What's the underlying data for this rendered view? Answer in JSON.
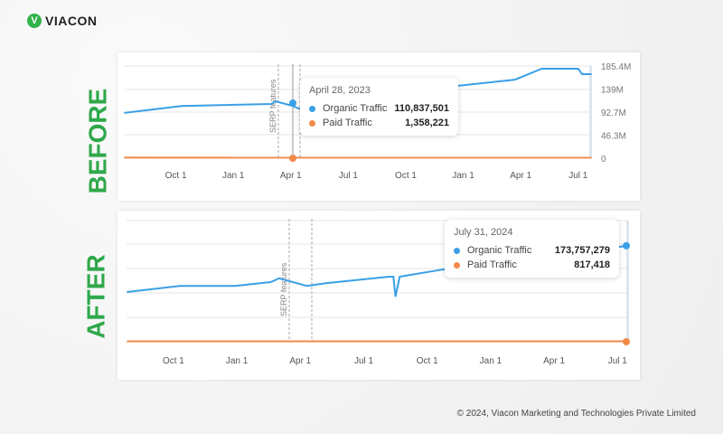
{
  "brand": {
    "name": "VIACON",
    "reg": "®"
  },
  "labels": {
    "before": "BEFORE",
    "after": "AFTER"
  },
  "footer": "© 2024, Viacon Marketing and Technologies Private Limited",
  "colors": {
    "organic": "#3a9fe6",
    "paid": "#f28a4a",
    "accent": "#2fa84a"
  },
  "chart_data": [
    {
      "type": "line",
      "title": "BEFORE",
      "ylim": [
        0,
        185.4
      ],
      "y_ticks": [
        "0",
        "46.3M",
        "92.7M",
        "139M",
        "185.4M"
      ],
      "x_ticks": [
        "Oct 1",
        "Jan 1",
        "Apr 1",
        "Jul 1",
        "Oct 1",
        "Jan 1",
        "Apr 1",
        "Jul 1"
      ],
      "annotation": "SERP features",
      "series": [
        {
          "name": "Organic Traffic",
          "unit": "M",
          "points": [
            [
              0.3,
              91
            ],
            [
              3.3,
              105
            ],
            [
              8,
              109
            ],
            [
              8.2,
              114.5
            ],
            [
              9.1,
              105
            ],
            [
              9.4,
              100
            ],
            [
              17.6,
              145
            ],
            [
              20.7,
              158
            ],
            [
              22.1,
              180
            ],
            [
              24,
              180
            ],
            [
              24.2,
              169
            ],
            [
              24.7,
              169
            ]
          ]
        },
        {
          "name": "Paid Traffic",
          "unit": "M",
          "points": [
            [
              0.3,
              1.2
            ],
            [
              24.7,
              1.0
            ]
          ]
        }
      ],
      "tooltip": {
        "date": "April 28, 2023",
        "organic": "110,837,501",
        "paid": "1,358,221"
      }
    },
    {
      "type": "line",
      "title": "AFTER",
      "ylim": [
        0,
        180
      ],
      "x_ticks": [
        "Oct 1",
        "Jan 1",
        "Apr 1",
        "Jul 1",
        "Oct 1",
        "Jan 1",
        "Apr 1",
        "Jul 1"
      ],
      "annotation": "SERP features",
      "series": [
        {
          "name": "Organic Traffic",
          "unit": "M",
          "points": [
            [
              0.8,
              91.7
            ],
            [
              3.3,
              103
            ],
            [
              5.9,
              103
            ],
            [
              7.6,
              110
            ],
            [
              8,
              117
            ],
            [
              9.3,
              103
            ],
            [
              10.2,
              108
            ],
            [
              13.2,
              120
            ],
            [
              13.4,
              120
            ],
            [
              13.5,
              83
            ],
            [
              13.7,
              120
            ],
            [
              15.7,
              133
            ],
            [
              24.5,
              177
            ]
          ]
        },
        {
          "name": "Paid Traffic",
          "unit": "M",
          "points": [
            [
              0.8,
              0.8
            ],
            [
              24.5,
              0.8
            ]
          ]
        }
      ],
      "tooltip": {
        "date": "July 31, 2024",
        "organic": "173,757,279",
        "paid": "817,418"
      }
    }
  ]
}
